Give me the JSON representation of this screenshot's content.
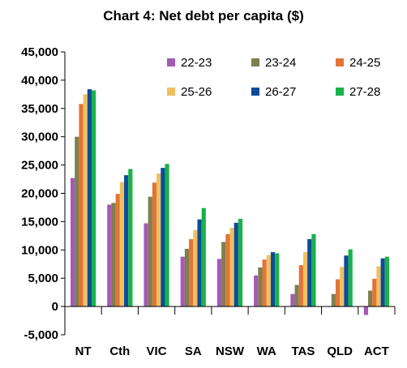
{
  "chart_data": {
    "type": "bar",
    "title": "Chart 4: Net debt per capita ($)",
    "xlabel": "",
    "ylabel": "",
    "ylim": [
      -5000,
      45000
    ],
    "yticks": [
      -5000,
      0,
      5000,
      10000,
      15000,
      20000,
      25000,
      30000,
      35000,
      40000,
      45000
    ],
    "ytick_labels": [
      "-5,000",
      "0",
      "5,000",
      "10,000",
      "15,000",
      "20,000",
      "25,000",
      "30,000",
      "35,000",
      "40,000",
      "45,000"
    ],
    "grid": false,
    "legend_position": "top-right",
    "categories": [
      "NT",
      "Cth",
      "VIC",
      "SA",
      "NSW",
      "WA",
      "TAS",
      "QLD",
      "ACT"
    ],
    "series": [
      {
        "name": "22-23",
        "color": "#A35BB5",
        "values": [
          22700,
          18000,
          14700,
          8800,
          8400,
          5500,
          2200,
          0,
          -1500
        ]
      },
      {
        "name": "23-24",
        "color": "#7F7F4F",
        "values": [
          30000,
          18300,
          19400,
          10200,
          11400,
          6900,
          3800,
          2200,
          2800
        ]
      },
      {
        "name": "24-25",
        "color": "#E27438",
        "values": [
          35800,
          19900,
          21900,
          11900,
          12800,
          8300,
          7300,
          4800,
          4900
        ]
      },
      {
        "name": "25-26",
        "color": "#F0C060",
        "values": [
          37500,
          22000,
          23500,
          13500,
          13900,
          9100,
          9600,
          7000,
          7100
        ]
      },
      {
        "name": "26-27",
        "color": "#0E4C9A",
        "values": [
          38400,
          23200,
          24500,
          15400,
          14800,
          9600,
          11900,
          9000,
          8500
        ]
      },
      {
        "name": "27-28",
        "color": "#19B24A",
        "values": [
          38200,
          24300,
          25200,
          17400,
          15500,
          9400,
          12800,
          10100,
          8800
        ]
      }
    ]
  }
}
